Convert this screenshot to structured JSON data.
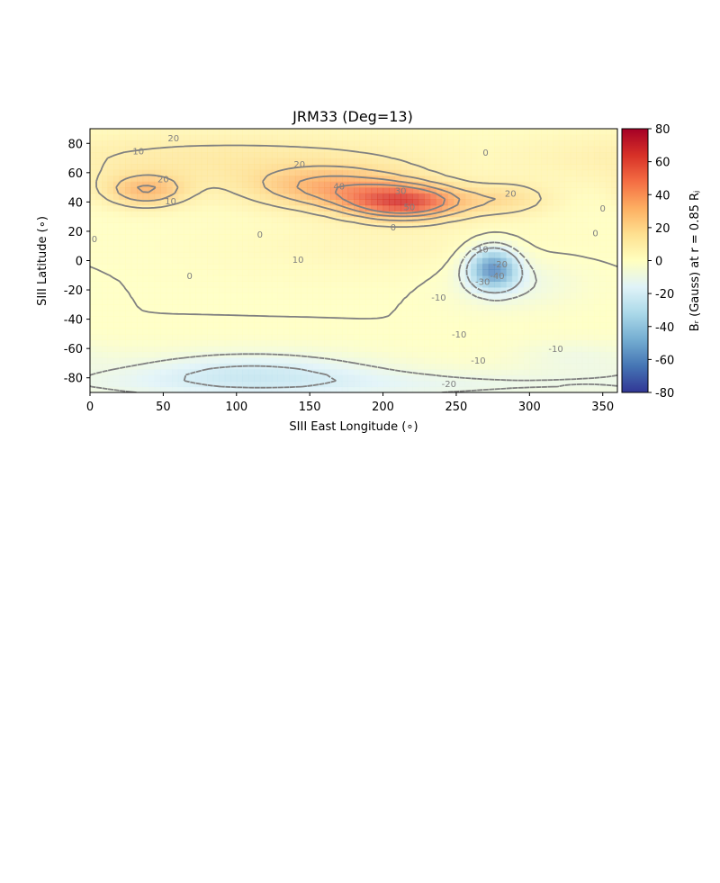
{
  "chart_data": {
    "type": "heatmap",
    "title": "JRM33 (Deg=13)",
    "xlabel": "SIII East Longitude (∘)",
    "ylabel": "SIII Latitude (∘)",
    "colorbar_label": "Bᵣ (Gauss) at r = 0.85 Rⱼ",
    "xlim": [
      0,
      360
    ],
    "ylim": [
      -90,
      90
    ],
    "xticks": [
      0,
      50,
      100,
      150,
      200,
      250,
      300,
      350
    ],
    "yticks": [
      -80,
      -60,
      -40,
      -20,
      0,
      20,
      40,
      60,
      80
    ],
    "colorbar_range": [
      -80,
      80
    ],
    "colorbar_ticks": [
      -80,
      -60,
      -40,
      -20,
      0,
      20,
      40,
      60,
      80
    ],
    "colormap": "RdYlBu_r",
    "contour_levels": [
      -20,
      -10,
      0,
      10,
      20,
      30,
      40
    ],
    "field_blobs": [
      {
        "lon": 215,
        "lat": 40,
        "amp": 55,
        "wlon": 28,
        "wlat": 8
      },
      {
        "lon": 165,
        "lat": 50,
        "amp": 30,
        "wlon": 40,
        "wlat": 10
      },
      {
        "lon": 38,
        "lat": 48,
        "amp": 28,
        "wlon": 20,
        "wlat": 8
      },
      {
        "lon": 285,
        "lat": 42,
        "amp": 15,
        "wlon": 22,
        "wlat": 8
      },
      {
        "lon": 90,
        "lat": 70,
        "amp": 12,
        "wlon": 120,
        "wlat": 14
      },
      {
        "lon": 275,
        "lat": -5,
        "amp": -55,
        "wlon": 12,
        "wlat": 10
      },
      {
        "lon": 290,
        "lat": -15,
        "amp": -10,
        "wlon": 30,
        "wlat": 12
      },
      {
        "lon": 110,
        "lat": -75,
        "amp": -18,
        "wlon": 60,
        "wlat": 10
      },
      {
        "lon": 180,
        "lat": -85,
        "amp": -12,
        "wlon": 200,
        "wlat": 8
      },
      {
        "lon": 200,
        "lat": 10,
        "amp": 5,
        "wlon": 80,
        "wlat": 15
      },
      {
        "lon": 330,
        "lat": -65,
        "amp": -8,
        "wlon": 30,
        "wlat": 8
      }
    ],
    "contour_labels": [
      {
        "text": "20",
        "lon": 57,
        "lat": 84
      },
      {
        "text": "10",
        "lon": 33,
        "lat": 75
      },
      {
        "text": "20",
        "lon": 50,
        "lat": 56
      },
      {
        "text": "10",
        "lon": 55,
        "lat": 41
      },
      {
        "text": "20",
        "lon": 143,
        "lat": 66
      },
      {
        "text": "40",
        "lon": 170,
        "lat": 51
      },
      {
        "text": "30",
        "lon": 212,
        "lat": 48
      },
      {
        "text": "50",
        "lon": 218,
        "lat": 37
      },
      {
        "text": "0",
        "lon": 270,
        "lat": 74
      },
      {
        "text": "20",
        "lon": 287,
        "lat": 46
      },
      {
        "text": "0",
        "lon": 350,
        "lat": 36
      },
      {
        "text": "0",
        "lon": 3,
        "lat": 15
      },
      {
        "text": "0",
        "lon": 116,
        "lat": 18
      },
      {
        "text": "0",
        "lon": 207,
        "lat": 23
      },
      {
        "text": "0",
        "lon": 345,
        "lat": 19
      },
      {
        "text": "10",
        "lon": 142,
        "lat": 1
      },
      {
        "text": "0",
        "lon": 68,
        "lat": -10
      },
      {
        "text": "-10",
        "lon": 267,
        "lat": 8
      },
      {
        "text": "-20",
        "lon": 280,
        "lat": -2
      },
      {
        "text": "-30",
        "lon": 268,
        "lat": -14
      },
      {
        "text": "-40",
        "lon": 278,
        "lat": -10
      },
      {
        "text": "-10",
        "lon": 238,
        "lat": -25
      },
      {
        "text": "-10",
        "lon": 252,
        "lat": -50
      },
      {
        "text": "-10",
        "lon": 318,
        "lat": -60
      },
      {
        "text": "-10",
        "lon": 265,
        "lat": -68
      },
      {
        "text": "-20",
        "lon": 245,
        "lat": -84
      }
    ]
  }
}
